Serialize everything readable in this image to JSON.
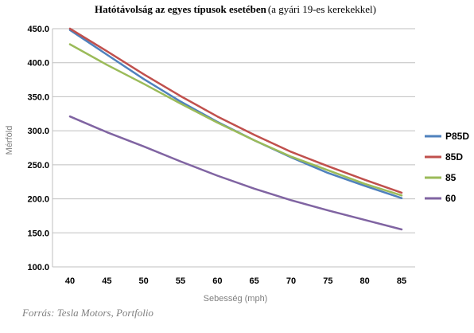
{
  "chart_data": {
    "type": "line",
    "title": "Hatótávolság az egyes típusok esetében",
    "subtitle": "(a gyári 19-es kerekekkel)",
    "xlabel": "Sebesség (mph)",
    "ylabel": "Mérföld",
    "x": [
      40,
      45,
      50,
      55,
      60,
      65,
      70,
      75,
      80,
      85
    ],
    "x_tick_labels": [
      "40",
      "45",
      "50",
      "55",
      "60",
      "65",
      "70",
      "75",
      "80",
      "85"
    ],
    "ylim": [
      100,
      450
    ],
    "y_ticks": [
      100,
      150,
      200,
      250,
      300,
      350,
      400,
      450
    ],
    "y_tick_labels": [
      "100.0",
      "150.0",
      "200.0",
      "250.0",
      "300.0",
      "350.0",
      "400.0",
      "450.0"
    ],
    "grid": "horizontal",
    "legend_position": "right",
    "series": [
      {
        "name": "P85D",
        "color": "#4f81bd",
        "values": [
          448,
          412,
          376,
          343,
          313,
          286,
          261,
          238,
          219,
          201
        ]
      },
      {
        "name": "85D",
        "color": "#c0504d",
        "values": [
          450,
          417,
          383,
          351,
          321,
          294,
          269,
          248,
          228,
          209
        ]
      },
      {
        "name": "85",
        "color": "#9bbb59",
        "values": [
          427,
          397,
          369,
          340,
          312,
          286,
          262,
          242,
          222,
          205
        ]
      },
      {
        "name": "60",
        "color": "#8064a2",
        "values": [
          321,
          298,
          277,
          255,
          234,
          215,
          198,
          183,
          169,
          155
        ]
      }
    ]
  },
  "source_note": "Forrás: Tesla Motors, Portfolio"
}
